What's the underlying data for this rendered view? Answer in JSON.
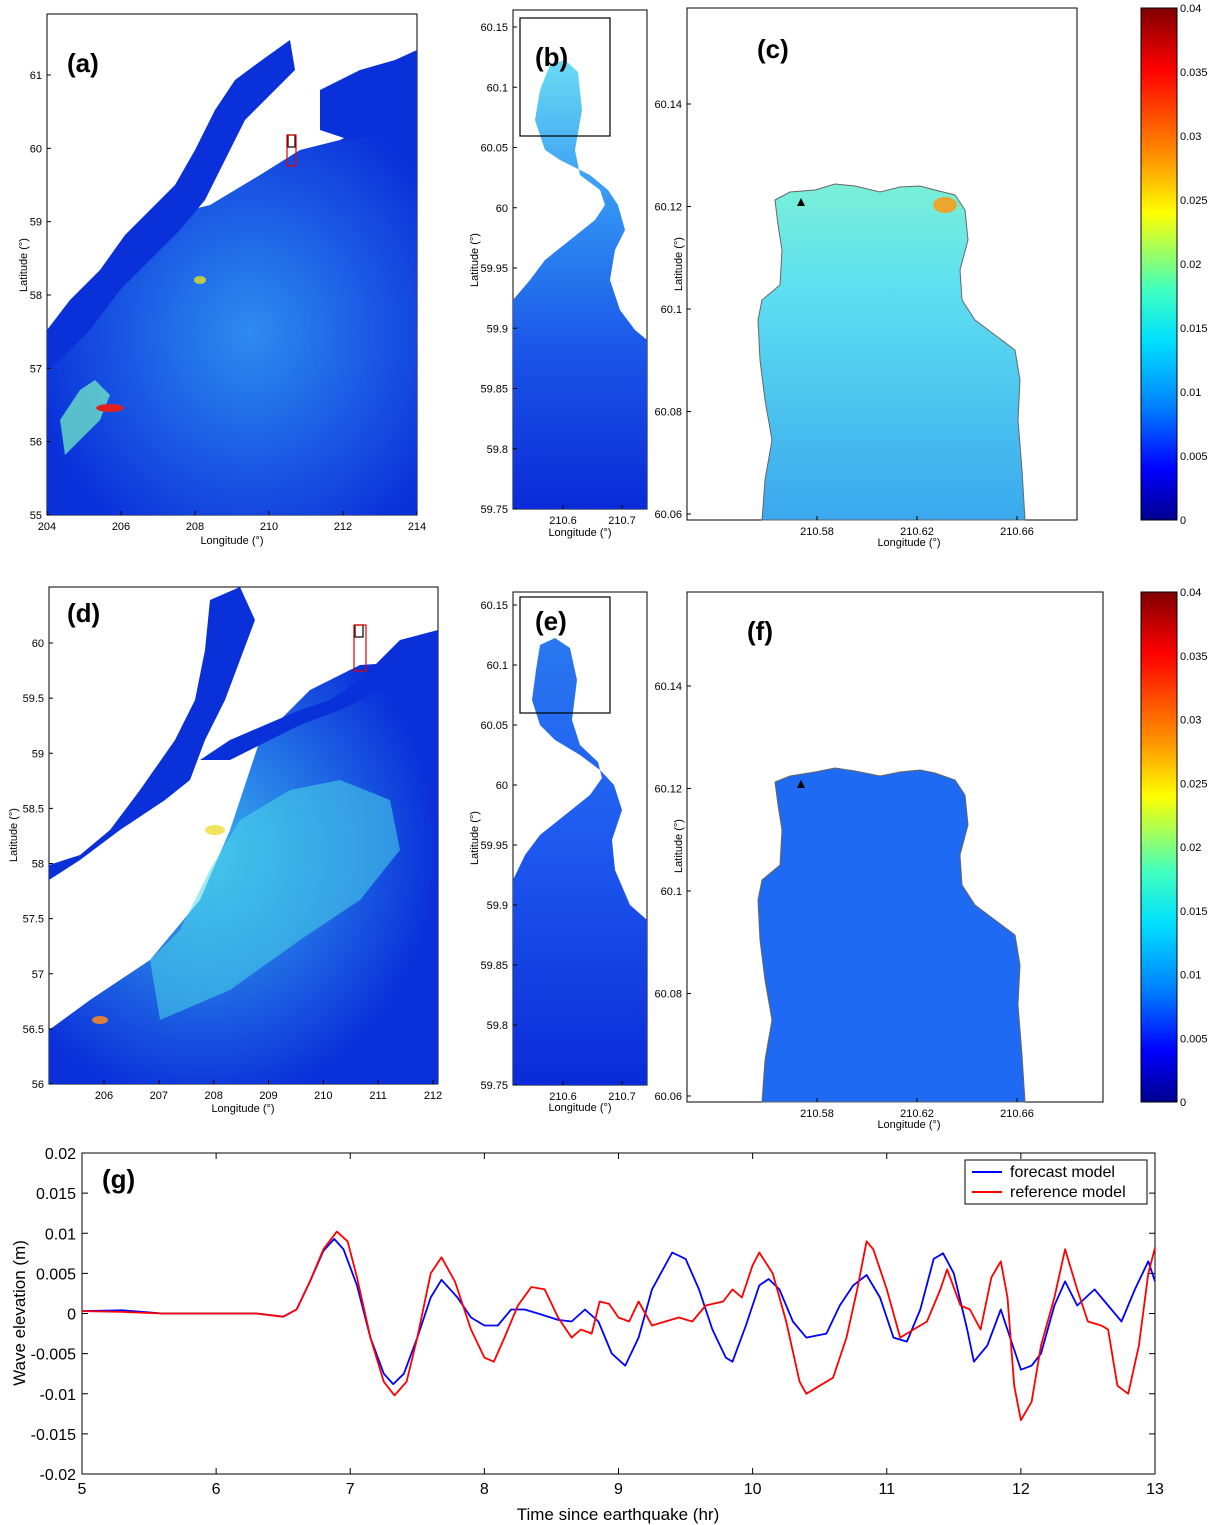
{
  "colors": {
    "ocean_deep": "#0a2bd8",
    "ocean_mid": "#1e5af0",
    "bay_cyan_top": "#6ee6e6",
    "bay_cyan_bottom": "#3aa0ea",
    "forecast_line": "#0000ff",
    "reference_line": "#ff0000",
    "land": "#ffffff",
    "coast": "#555555"
  },
  "maps": {
    "a": {
      "label": "(a)",
      "xlabel": "Longitude (°)",
      "ylabel": "Latitude (°)",
      "xticks": [
        "204",
        "206",
        "208",
        "210",
        "212",
        "214"
      ],
      "yticks": [
        "61",
        "60",
        "59",
        "58",
        "57",
        "56",
        "55"
      ]
    },
    "b": {
      "label": "(b)",
      "xlabel": "Longitude (°)",
      "ylabel": "Latitude (°)",
      "xticks": [
        "210.6",
        "210.7"
      ],
      "yticks": [
        "60.15",
        "60.1",
        "60.05",
        "60",
        "59.95",
        "59.9",
        "59.85",
        "59.8",
        "59.75"
      ]
    },
    "c": {
      "label": "(c)",
      "xlabel": "Longitude (°)",
      "ylabel": "Latitude (°)",
      "xticks": [
        "210.58",
        "210.62",
        "210.66"
      ],
      "yticks": [
        "60.14",
        "60.12",
        "60.1",
        "60.08",
        "60.06"
      ]
    },
    "d": {
      "label": "(d)",
      "xlabel": "Longitude (°)",
      "ylabel": "Latitude (°)",
      "xticks": [
        "206",
        "207",
        "208",
        "209",
        "210",
        "211",
        "212"
      ],
      "yticks": [
        "60",
        "59.5",
        "59",
        "58.5",
        "58",
        "57.5",
        "57",
        "56.5",
        "56"
      ]
    },
    "e": {
      "label": "(e)",
      "xlabel": "Longitude (°)",
      "ylabel": "Latitude (°)",
      "xticks": [
        "210.6",
        "210.7"
      ],
      "yticks": [
        "60.15",
        "60.1",
        "60.05",
        "60",
        "59.95",
        "59.9",
        "59.85",
        "59.8",
        "59.75"
      ]
    },
    "f": {
      "label": "(f)",
      "xlabel": "Longitude (°)",
      "ylabel": "Latitude (°)",
      "xticks": [
        "210.58",
        "210.62",
        "210.66"
      ],
      "yticks": [
        "60.14",
        "60.12",
        "60.1",
        "60.08",
        "60.06"
      ]
    }
  },
  "colorbar": {
    "ticks": [
      "0.04",
      "0.035",
      "0.03",
      "0.025",
      "0.02",
      "0.015",
      "0.01",
      "0.005",
      "0"
    ]
  },
  "chart_data": {
    "type": "line",
    "label": "(g)",
    "xlabel": "Time since earthquake (hr)",
    "ylabel": "Wave elevation (m)",
    "xlim": [
      5,
      13
    ],
    "ylim": [
      -0.02,
      0.02
    ],
    "xticks": [
      5,
      6,
      7,
      8,
      9,
      10,
      11,
      12,
      13
    ],
    "yticks": [
      0.02,
      0.015,
      0.01,
      0.005,
      0,
      -0.005,
      -0.01,
      -0.015,
      -0.02
    ],
    "ytick_labels": [
      "0.02",
      "0.015",
      "0.01",
      "0.005",
      "0",
      "-0.005",
      "-0.01",
      "-0.015",
      "-0.02"
    ],
    "grid": false,
    "legend_position": "top-right",
    "series": [
      {
        "name": "forecast model",
        "color": "#0000ff",
        "points": [
          [
            5.0,
            0.0003
          ],
          [
            5.3,
            0.0004
          ],
          [
            5.6,
            0.0
          ],
          [
            6.0,
            0.0
          ],
          [
            6.3,
            0.0
          ],
          [
            6.5,
            -0.0004
          ],
          [
            6.6,
            0.0005
          ],
          [
            6.7,
            0.004
          ],
          [
            6.8,
            0.0078
          ],
          [
            6.88,
            0.0093
          ],
          [
            6.95,
            0.008
          ],
          [
            7.05,
            0.0035
          ],
          [
            7.15,
            -0.003
          ],
          [
            7.25,
            -0.0075
          ],
          [
            7.32,
            -0.0088
          ],
          [
            7.4,
            -0.0075
          ],
          [
            7.5,
            -0.003
          ],
          [
            7.6,
            0.002
          ],
          [
            7.68,
            0.0042
          ],
          [
            7.8,
            0.002
          ],
          [
            7.9,
            -0.0005
          ],
          [
            8.0,
            -0.0015
          ],
          [
            8.1,
            -0.0015
          ],
          [
            8.2,
            0.0005
          ],
          [
            8.3,
            0.0005
          ],
          [
            8.4,
            0.0
          ],
          [
            8.55,
            -0.0008
          ],
          [
            8.65,
            -0.001
          ],
          [
            8.75,
            0.0005
          ],
          [
            8.85,
            -0.001
          ],
          [
            8.95,
            -0.005
          ],
          [
            9.05,
            -0.0065
          ],
          [
            9.15,
            -0.003
          ],
          [
            9.25,
            0.003
          ],
          [
            9.4,
            0.0076
          ],
          [
            9.5,
            0.0068
          ],
          [
            9.6,
            0.003
          ],
          [
            9.7,
            -0.002
          ],
          [
            9.8,
            -0.0055
          ],
          [
            9.85,
            -0.006
          ],
          [
            9.95,
            -0.0015
          ],
          [
            10.05,
            0.0035
          ],
          [
            10.12,
            0.0043
          ],
          [
            10.2,
            0.003
          ],
          [
            10.3,
            -0.001
          ],
          [
            10.4,
            -0.003
          ],
          [
            10.55,
            -0.0025
          ],
          [
            10.65,
            0.001
          ],
          [
            10.75,
            0.0035
          ],
          [
            10.85,
            0.0048
          ],
          [
            10.95,
            0.002
          ],
          [
            11.05,
            -0.003
          ],
          [
            11.15,
            -0.0035
          ],
          [
            11.25,
            0.0005
          ],
          [
            11.35,
            0.0068
          ],
          [
            11.42,
            0.0075
          ],
          [
            11.5,
            0.005
          ],
          [
            11.6,
            -0.002
          ],
          [
            11.65,
            -0.006
          ],
          [
            11.75,
            -0.004
          ],
          [
            11.85,
            0.0005
          ],
          [
            11.92,
            -0.003
          ],
          [
            12.0,
            -0.007
          ],
          [
            12.08,
            -0.0065
          ],
          [
            12.15,
            -0.005
          ],
          [
            12.25,
            0.001
          ],
          [
            12.33,
            0.004
          ],
          [
            12.42,
            0.001
          ],
          [
            12.55,
            0.003
          ],
          [
            12.65,
            0.001
          ],
          [
            12.75,
            -0.001
          ],
          [
            12.85,
            0.003
          ],
          [
            12.95,
            0.0065
          ],
          [
            13.0,
            0.004
          ]
        ]
      },
      {
        "name": "reference model",
        "color": "#ff0000",
        "points": [
          [
            5.0,
            0.0003
          ],
          [
            5.3,
            0.0002
          ],
          [
            5.6,
            0.0
          ],
          [
            6.0,
            0.0
          ],
          [
            6.3,
            0.0
          ],
          [
            6.5,
            -0.0004
          ],
          [
            6.6,
            0.0005
          ],
          [
            6.7,
            0.004
          ],
          [
            6.8,
            0.008
          ],
          [
            6.9,
            0.0102
          ],
          [
            6.98,
            0.009
          ],
          [
            7.05,
            0.0045
          ],
          [
            7.15,
            -0.003
          ],
          [
            7.25,
            -0.0085
          ],
          [
            7.33,
            -0.0102
          ],
          [
            7.42,
            -0.0085
          ],
          [
            7.5,
            -0.003
          ],
          [
            7.6,
            0.005
          ],
          [
            7.68,
            0.007
          ],
          [
            7.78,
            0.004
          ],
          [
            7.9,
            -0.002
          ],
          [
            8.0,
            -0.0055
          ],
          [
            8.07,
            -0.006
          ],
          [
            8.15,
            -0.003
          ],
          [
            8.25,
            0.001
          ],
          [
            8.35,
            0.0033
          ],
          [
            8.45,
            0.003
          ],
          [
            8.55,
            -0.0005
          ],
          [
            8.65,
            -0.003
          ],
          [
            8.72,
            -0.002
          ],
          [
            8.8,
            -0.0025
          ],
          [
            8.86,
            0.0015
          ],
          [
            8.93,
            0.0012
          ],
          [
            9.0,
            -0.0005
          ],
          [
            9.08,
            -0.001
          ],
          [
            9.15,
            0.0015
          ],
          [
            9.25,
            -0.0015
          ],
          [
            9.35,
            -0.001
          ],
          [
            9.45,
            -0.0005
          ],
          [
            9.55,
            -0.001
          ],
          [
            9.65,
            0.001
          ],
          [
            9.78,
            0.0015
          ],
          [
            9.85,
            0.003
          ],
          [
            9.92,
            0.002
          ],
          [
            10.0,
            0.006
          ],
          [
            10.05,
            0.0076
          ],
          [
            10.15,
            0.005
          ],
          [
            10.25,
            -0.001
          ],
          [
            10.35,
            -0.0085
          ],
          [
            10.4,
            -0.01
          ],
          [
            10.5,
            -0.009
          ],
          [
            10.6,
            -0.008
          ],
          [
            10.7,
            -0.003
          ],
          [
            10.78,
            0.003
          ],
          [
            10.85,
            0.009
          ],
          [
            10.9,
            0.008
          ],
          [
            11.0,
            0.003
          ],
          [
            11.1,
            -0.003
          ],
          [
            11.2,
            -0.002
          ],
          [
            11.3,
            -0.001
          ],
          [
            11.4,
            0.003
          ],
          [
            11.45,
            0.0055
          ],
          [
            11.55,
            0.001
          ],
          [
            11.62,
            0.0005
          ],
          [
            11.7,
            -0.002
          ],
          [
            11.78,
            0.0045
          ],
          [
            11.85,
            0.0065
          ],
          [
            11.9,
            0.002
          ],
          [
            11.95,
            -0.009
          ],
          [
            12.0,
            -0.0133
          ],
          [
            12.08,
            -0.011
          ],
          [
            12.15,
            -0.004
          ],
          [
            12.25,
            0.002
          ],
          [
            12.33,
            0.008
          ],
          [
            12.42,
            0.003
          ],
          [
            12.5,
            -0.001
          ],
          [
            12.6,
            -0.0015
          ],
          [
            12.65,
            -0.002
          ],
          [
            12.72,
            -0.009
          ],
          [
            12.8,
            -0.01
          ],
          [
            12.88,
            -0.004
          ],
          [
            12.95,
            0.005
          ],
          [
            13.0,
            0.0082
          ]
        ]
      }
    ]
  }
}
